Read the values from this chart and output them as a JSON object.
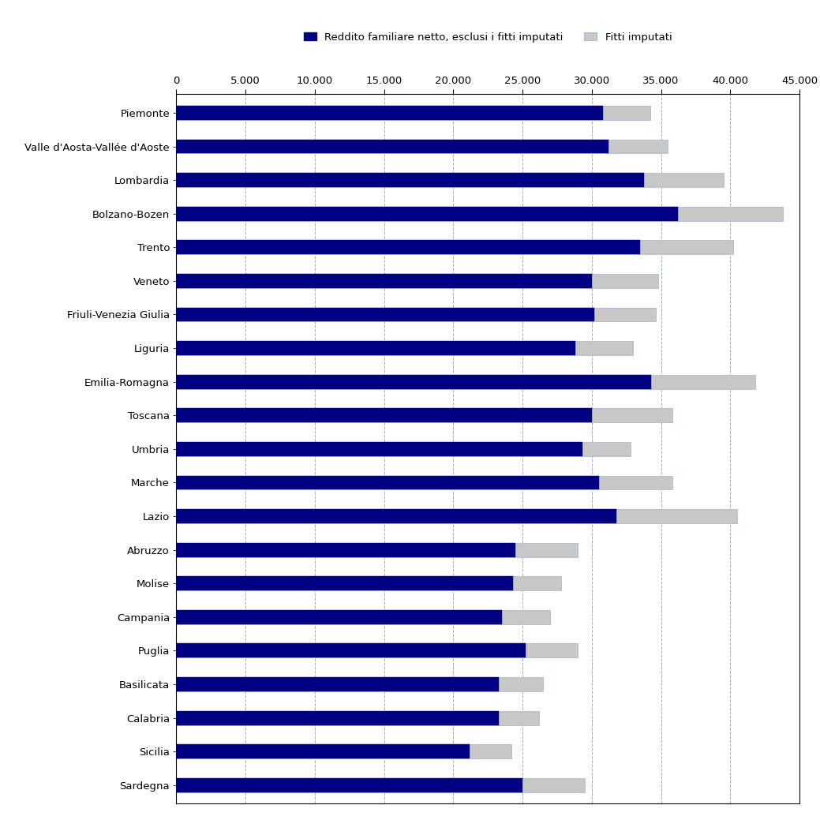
{
  "regions": [
    "Piemonte",
    "Valle d'Aosta-Vallée d'Aoste",
    "Lombardia",
    "Bolzano-Bozen",
    "Trento",
    "Veneto",
    "Friuli-Venezia Giulia",
    "Liguria",
    "Emilia-Romagna",
    "Toscana",
    "Umbria",
    "Marche",
    "Lazio",
    "Abruzzo",
    "Molise",
    "Campania",
    "Puglia",
    "Basilicata",
    "Calabria",
    "Sicilia",
    "Sardegna"
  ],
  "reddito": [
    30800,
    31200,
    33800,
    36200,
    33500,
    30000,
    30200,
    28800,
    34300,
    30000,
    29300,
    30500,
    31800,
    24500,
    24300,
    23500,
    25200,
    23300,
    23300,
    21200,
    25000
  ],
  "fitti_total": [
    34200,
    35500,
    39500,
    43800,
    40200,
    34800,
    34600,
    33000,
    41800,
    35800,
    32800,
    35800,
    40500,
    29000,
    27800,
    27000,
    29000,
    26500,
    26200,
    24200,
    29500
  ],
  "dark_color": "#000080",
  "light_color": "#c8c8c8",
  "light_border_color": "#a8bcd0",
  "legend_label1": "Reddito familiare netto, esclusi i fitti imputati",
  "legend_label2": "Fitti imputati",
  "xlim": [
    0,
    45000
  ],
  "xticks": [
    0,
    5000,
    10000,
    15000,
    20000,
    25000,
    30000,
    35000,
    40000,
    45000
  ],
  "xtick_labels": [
    "0",
    "5.000",
    "10.000",
    "15.000",
    "20.000",
    "25.000",
    "30.000",
    "35.000",
    "40.000",
    "45.000"
  ],
  "bar_height": 0.42,
  "background_color": "#ffffff",
  "grid_color": "#aaaaaa"
}
